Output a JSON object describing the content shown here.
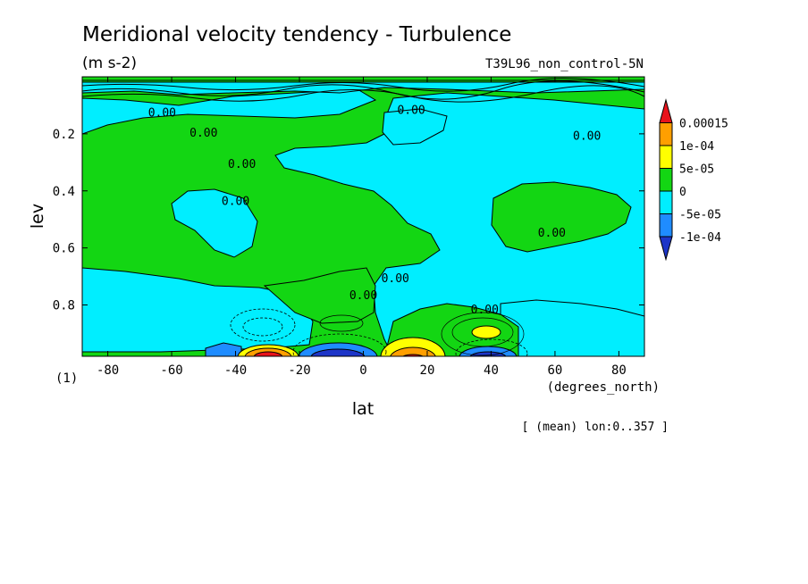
{
  "chart_data": {
    "type": "heatmap",
    "title": "Meridional velocity tendency - Turbulence",
    "units": "(m s-2)",
    "subtitle": "T39L96_non_control-5N",
    "xlabel": "lat",
    "xunits": "(degrees_north)",
    "ylabel": "lev",
    "yunits": "(1)",
    "footnote": "[ (mean) lon:0..357 ]",
    "xlim": [
      -88,
      88
    ],
    "ylim": [
      0.0,
      0.98
    ],
    "y_inverted": true,
    "xticks": [
      -80,
      -60,
      -40,
      -20,
      0,
      20,
      40,
      60,
      80
    ],
    "xtick_labels": [
      "-80",
      "-60",
      "-40",
      "-20",
      "0",
      "20",
      "40",
      "60",
      "80"
    ],
    "yticks": [
      0.2,
      0.4,
      0.6,
      0.8
    ],
    "ytick_labels": [
      "0.2",
      "0.4",
      "0.6",
      "0.8"
    ],
    "contour_label": "0.00",
    "contour_label_positions": [
      {
        "lat": -63,
        "lev": 0.14
      },
      {
        "lat": -50,
        "lev": 0.21
      },
      {
        "lat": -38,
        "lev": 0.32
      },
      {
        "lat": -40,
        "lev": 0.45
      },
      {
        "lat": 0,
        "lev": 0.78
      },
      {
        "lat": 10,
        "lev": 0.72
      },
      {
        "lat": 15,
        "lev": 0.13
      },
      {
        "lat": 38,
        "lev": 0.83
      },
      {
        "lat": 59,
        "lev": 0.56
      },
      {
        "lat": 70,
        "lev": 0.22
      }
    ],
    "colorbar": {
      "levels": [
        "0.00015",
        "1e-04",
        "5e-05",
        "0",
        "-5e-05",
        "-1e-04"
      ],
      "colors": [
        "#e8131b",
        "#ff9f00",
        "#ffff00",
        "#13d613",
        "#00eeff",
        "#1f8cff",
        "#1d35c8"
      ]
    },
    "regions": [
      {
        "name": "near-surface negative core",
        "lat": [
          -5,
          -25
        ],
        "lev": 0.97,
        "sign": "negative"
      },
      {
        "name": "near-surface positive core",
        "lat": [
          -40,
          -30
        ],
        "lev": 0.97,
        "sign": "positive"
      },
      {
        "name": "near-surface positive core",
        "lat": [
          10,
          20
        ],
        "lev": 0.97,
        "sign": "positive"
      },
      {
        "name": "near-surface negative core",
        "lat": [
          35,
          45
        ],
        "lev": 0.97,
        "sign": "negative"
      }
    ]
  }
}
